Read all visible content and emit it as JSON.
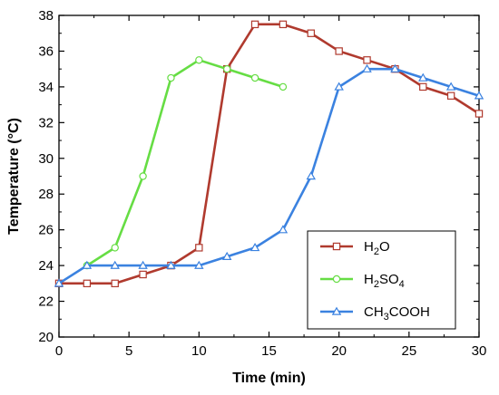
{
  "chart_data": {
    "type": "line",
    "title": "",
    "xlabel": "Time (min)",
    "ylabel": "Temperature (°C)",
    "xlim": [
      0,
      30
    ],
    "ylim": [
      20,
      38
    ],
    "x_ticks": [
      "0",
      "5",
      "10",
      "15",
      "20",
      "25",
      "30"
    ],
    "y_ticks": [
      "20",
      "22",
      "24",
      "26",
      "28",
      "30",
      "32",
      "34",
      "36",
      "38"
    ],
    "grid": false,
    "legend_position": "lower-right",
    "series": [
      {
        "name_parts": [
          [
            "H",
            ""
          ],
          [
            "2",
            "sub"
          ],
          [
            "O",
            ""
          ]
        ],
        "name": "H2O",
        "color": "#b03a2e",
        "marker": "square",
        "x": [
          0,
          2,
          4,
          6,
          8,
          10,
          12,
          14,
          16,
          18,
          20,
          22,
          24,
          26,
          28,
          30
        ],
        "y": [
          23,
          23,
          23,
          23.5,
          24,
          25,
          35,
          37.5,
          37.5,
          37,
          36,
          35.5,
          35,
          34,
          33.5,
          32.5
        ]
      },
      {
        "name_parts": [
          [
            "H",
            ""
          ],
          [
            "2",
            "sub"
          ],
          [
            "SO",
            ""
          ],
          [
            "4",
            "sub"
          ]
        ],
        "name": "H2SO4",
        "color": "#66dd44",
        "marker": "circle",
        "x": [
          2,
          4,
          6,
          8,
          10,
          12,
          14,
          16
        ],
        "y": [
          24,
          25,
          29,
          34.5,
          35.5,
          35,
          34.5,
          34
        ]
      },
      {
        "name_parts": [
          [
            "CH",
            ""
          ],
          [
            "3",
            "sub"
          ],
          [
            "COOH",
            ""
          ]
        ],
        "name": "CH3COOH",
        "color": "#3b82e0",
        "marker": "triangle",
        "x": [
          0,
          2,
          4,
          6,
          8,
          10,
          12,
          14,
          16,
          18,
          20,
          22,
          24,
          26,
          28,
          30
        ],
        "y": [
          23,
          24,
          24,
          24,
          24,
          24,
          24.5,
          25,
          26,
          29,
          34,
          35,
          35,
          34.5,
          34,
          33.5
        ]
      }
    ]
  }
}
